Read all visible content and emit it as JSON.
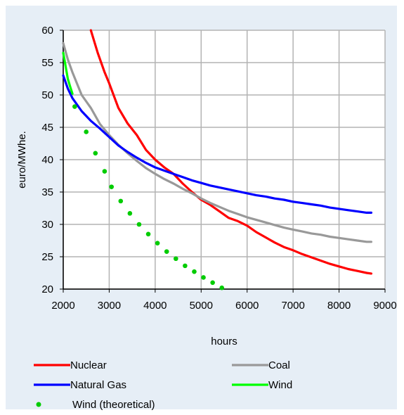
{
  "chart_data": {
    "type": "line",
    "title": "",
    "xlabel": "hours",
    "ylabel": "euro/MWhe.",
    "xlim": [
      2000,
      9000
    ],
    "ylim": [
      20,
      60
    ],
    "xticks": [
      2000,
      3000,
      4000,
      5000,
      6000,
      7000,
      8000,
      9000
    ],
    "yticks": [
      20,
      25,
      30,
      35,
      40,
      45,
      50,
      55,
      60
    ],
    "grid": true,
    "legend_position": "bottom",
    "series": [
      {
        "name": "Nuclear",
        "style": "line",
        "color": "#ff0000",
        "points": [
          [
            2600,
            60
          ],
          [
            2750,
            56.5
          ],
          [
            2900,
            53.5
          ],
          [
            3000,
            51.8
          ],
          [
            3200,
            48
          ],
          [
            3400,
            45.6
          ],
          [
            3600,
            43.8
          ],
          [
            3800,
            41.5
          ],
          [
            4000,
            40
          ],
          [
            4200,
            38.8
          ],
          [
            4400,
            37.8
          ],
          [
            4600,
            36.3
          ],
          [
            4800,
            35
          ],
          [
            5000,
            33.8
          ],
          [
            5200,
            33
          ],
          [
            5400,
            32
          ],
          [
            5600,
            31
          ],
          [
            5800,
            30.5
          ],
          [
            6000,
            29.8
          ],
          [
            6200,
            28.8
          ],
          [
            6400,
            28
          ],
          [
            6600,
            27.2
          ],
          [
            6800,
            26.5
          ],
          [
            7000,
            26
          ],
          [
            7200,
            25.4
          ],
          [
            7400,
            24.9
          ],
          [
            7600,
            24.4
          ],
          [
            7800,
            23.9
          ],
          [
            8000,
            23.5
          ],
          [
            8200,
            23.1
          ],
          [
            8400,
            22.8
          ],
          [
            8600,
            22.5
          ],
          [
            8700,
            22.4
          ]
        ]
      },
      {
        "name": "Coal",
        "style": "line",
        "color": "#999999",
        "points": [
          [
            2000,
            58
          ],
          [
            2100,
            55.5
          ],
          [
            2200,
            53.5
          ],
          [
            2400,
            50
          ],
          [
            2600,
            48
          ],
          [
            2800,
            45.5
          ],
          [
            3000,
            43.8
          ],
          [
            3200,
            42.3
          ],
          [
            3400,
            41
          ],
          [
            3600,
            39.8
          ],
          [
            3800,
            38.7
          ],
          [
            4000,
            37.8
          ],
          [
            4200,
            37
          ],
          [
            4400,
            36.3
          ],
          [
            4600,
            35.5
          ],
          [
            4800,
            34.8
          ],
          [
            5000,
            34
          ],
          [
            5200,
            33.3
          ],
          [
            5400,
            32.7
          ],
          [
            5600,
            32.1
          ],
          [
            5800,
            31.6
          ],
          [
            6000,
            31.1
          ],
          [
            6200,
            30.7
          ],
          [
            6400,
            30.3
          ],
          [
            6600,
            29.9
          ],
          [
            6800,
            29.5
          ],
          [
            7000,
            29.2
          ],
          [
            7200,
            28.9
          ],
          [
            7400,
            28.6
          ],
          [
            7600,
            28.4
          ],
          [
            7800,
            28.1
          ],
          [
            8000,
            27.9
          ],
          [
            8200,
            27.7
          ],
          [
            8400,
            27.5
          ],
          [
            8600,
            27.3
          ],
          [
            8700,
            27.3
          ]
        ]
      },
      {
        "name": "Natural Gas",
        "style": "line",
        "color": "#0000ff",
        "points": [
          [
            2000,
            53
          ],
          [
            2100,
            51
          ],
          [
            2200,
            49.5
          ],
          [
            2400,
            47.5
          ],
          [
            2600,
            46
          ],
          [
            2800,
            44.8
          ],
          [
            3000,
            43.5
          ],
          [
            3200,
            42.2
          ],
          [
            3400,
            41.2
          ],
          [
            3600,
            40.3
          ],
          [
            3800,
            39.5
          ],
          [
            4000,
            38.8
          ],
          [
            4200,
            38.3
          ],
          [
            4400,
            37.8
          ],
          [
            4600,
            37.3
          ],
          [
            4800,
            36.8
          ],
          [
            5000,
            36.4
          ],
          [
            5200,
            36
          ],
          [
            5400,
            35.7
          ],
          [
            5600,
            35.4
          ],
          [
            5800,
            35.1
          ],
          [
            6000,
            34.8
          ],
          [
            6200,
            34.5
          ],
          [
            6400,
            34.3
          ],
          [
            6600,
            34
          ],
          [
            6800,
            33.8
          ],
          [
            7000,
            33.5
          ],
          [
            7200,
            33.3
          ],
          [
            7400,
            33.1
          ],
          [
            7600,
            32.9
          ],
          [
            7800,
            32.6
          ],
          [
            8000,
            32.4
          ],
          [
            8200,
            32.2
          ],
          [
            8400,
            32
          ],
          [
            8600,
            31.8
          ],
          [
            8700,
            31.8
          ]
        ]
      },
      {
        "name": "Wind",
        "style": "line",
        "color": "#00ff00",
        "points": [
          [
            2000,
            56.5
          ],
          [
            2050,
            54.5
          ],
          [
            2100,
            52.5
          ],
          [
            2150,
            51.3
          ],
          [
            2200,
            50.2
          ]
        ]
      },
      {
        "name": "Wind (theoretical)",
        "style": "dots",
        "color": "#00cc00",
        "points": [
          [
            2250,
            48.2
          ],
          [
            2500,
            44.3
          ],
          [
            2700,
            41
          ],
          [
            2900,
            38.2
          ],
          [
            3050,
            35.8
          ],
          [
            3250,
            33.6
          ],
          [
            3450,
            31.7
          ],
          [
            3650,
            30
          ],
          [
            3850,
            28.5
          ],
          [
            4050,
            27.1
          ],
          [
            4250,
            25.8
          ],
          [
            4450,
            24.7
          ],
          [
            4650,
            23.6
          ],
          [
            4850,
            22.7
          ],
          [
            5050,
            21.8
          ],
          [
            5250,
            21
          ],
          [
            5450,
            20.2
          ]
        ]
      }
    ]
  }
}
